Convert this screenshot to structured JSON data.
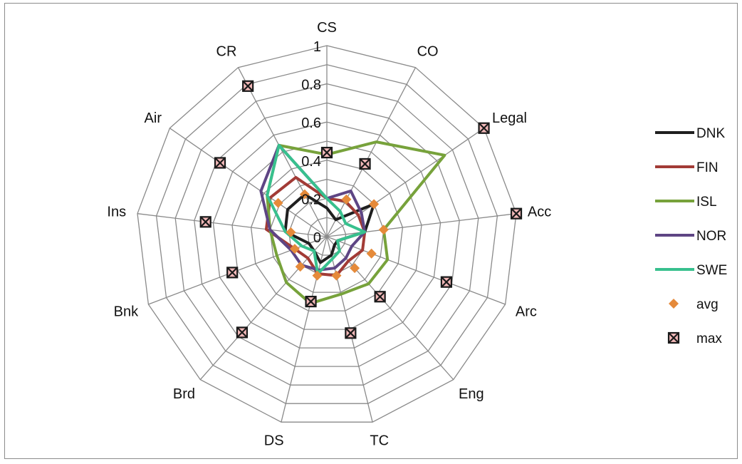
{
  "chart_data": {
    "type": "radar",
    "title": "",
    "categories": [
      "CS",
      "CO",
      "Legal",
      "Acc",
      "Arc",
      "Eng",
      "TC",
      "DS",
      "Brd",
      "Bnk",
      "Ins",
      "Air",
      "CR"
    ],
    "rlim": [
      0,
      1
    ],
    "r_ticks": [
      0,
      0.2,
      0.4,
      0.6,
      0.8,
      1
    ],
    "r_tick_labels": [
      "0",
      "0.2",
      "0.4",
      "0.6",
      "0.8",
      "1"
    ],
    "grid": true,
    "legend_position": "right",
    "series": [
      {
        "name": "DNK",
        "color": "#1f1f1f",
        "style": "line",
        "values": [
          0.15,
          0.1,
          0.3,
          0.2,
          0.06,
          0.06,
          0.1,
          0.14,
          0.1,
          0.1,
          0.22,
          0.25,
          0.25
        ]
      },
      {
        "name": "FIN",
        "color": "#a23b36",
        "style": "line",
        "values": [
          0.2,
          0.21,
          0.2,
          0.2,
          0.2,
          0.17,
          0.21,
          0.2,
          0.15,
          0.18,
          0.32,
          0.36,
          0.35
        ]
      },
      {
        "name": "ISL",
        "color": "#77a23b",
        "style": "line",
        "values": [
          0.43,
          0.56,
          0.75,
          0.3,
          0.34,
          0.33,
          0.31,
          0.36,
          0.32,
          0.28,
          0.3,
          0.38,
          0.54
        ]
      },
      {
        "name": "NOR",
        "color": "#5e4584",
        "style": "line",
        "values": [
          0.2,
          0.27,
          0.22,
          0.2,
          0.14,
          0.15,
          0.17,
          0.18,
          0.2,
          0.2,
          0.3,
          0.42,
          0.54
        ]
      },
      {
        "name": "SWE",
        "color": "#38c08e",
        "style": "line",
        "values": [
          0.2,
          0.15,
          0.12,
          0.2,
          0.06,
          0.1,
          0.12,
          0.2,
          0.1,
          0.14,
          0.22,
          0.38,
          0.54
        ]
      },
      {
        "name": "avg",
        "color": "#e58a3a",
        "style": "marker-diamond",
        "values": [
          0.44,
          0.22,
          0.3,
          0.3,
          0.25,
          0.22,
          0.21,
          0.21,
          0.21,
          0.18,
          0.19,
          0.31,
          0.25
        ]
      },
      {
        "name": "max",
        "color": "#1a1a1a",
        "style": "marker-x-square",
        "values": [
          0.44,
          0.43,
          1.0,
          1.0,
          0.67,
          0.42,
          0.52,
          0.35,
          0.67,
          0.53,
          0.64,
          0.68,
          0.89
        ]
      }
    ]
  }
}
